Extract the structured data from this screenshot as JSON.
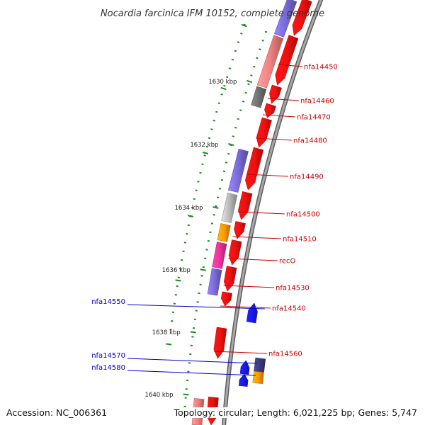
{
  "title": "Nocardia farcinica IFM 10152, complete genome",
  "footer": {
    "accession": "Accession: NC_006361",
    "topology": "Topology: circular; Length: 6,021,225 bp; Genes: 5,747"
  },
  "scale_labels": [
    "1630 kbp",
    "1632 kbp",
    "1634 kbp",
    "1636 kbp",
    "1638 kbp",
    "1640 kbp"
  ],
  "gene_labels_right": [
    "nfa14450",
    "nfa14460",
    "nfa14470",
    "nfa14480",
    "nfa14490",
    "nfa14500",
    "nfa14510",
    "recO",
    "nfa14530",
    "nfa14540",
    "nfa14560"
  ],
  "gene_labels_left": [
    "nfa14550",
    "nfa14570",
    "nfa14580"
  ],
  "colors": {
    "forward_strand": "#ee1111",
    "reverse_strand": "#1a1aee",
    "label_forward": "#cc0000",
    "label_reverse": "#0000cc",
    "backbone": "#888888",
    "scale_ticks": "#1e8c1e",
    "cog_purple": "#7a6ad8",
    "cog_salmon": "#f08080",
    "cog_gray": "#707070",
    "cog_light_gray": "#b8b8b8",
    "cog_orange": "#ff9900",
    "cog_pink": "#ee3399",
    "cog_dark_navy": "#3b3b7a"
  }
}
